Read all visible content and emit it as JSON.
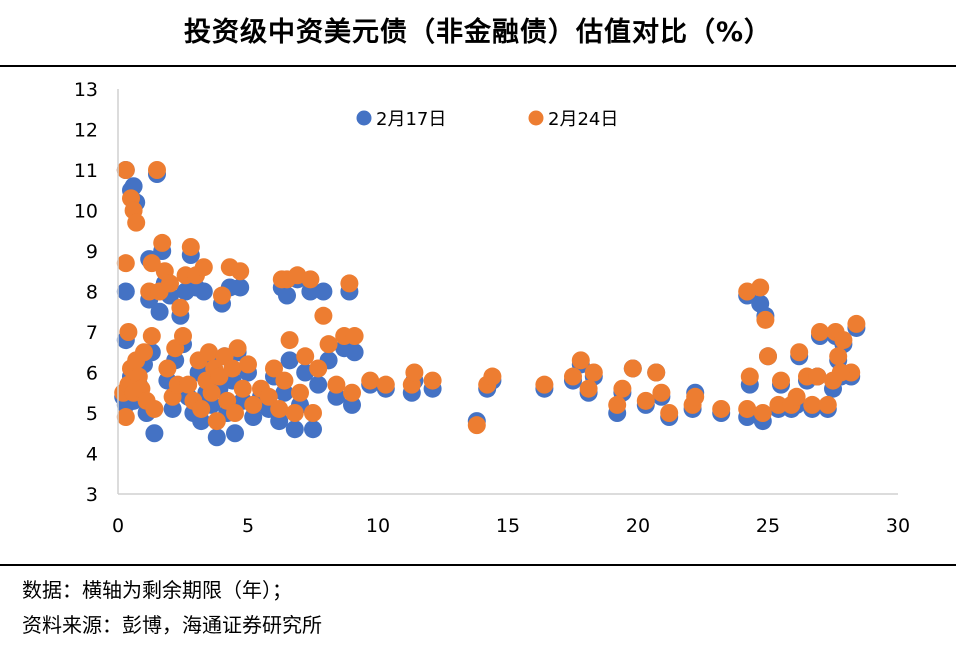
{
  "title": "投资级中资美元债（非金融债）估值对比（%）",
  "notes": {
    "line1": "数据：横轴为剩余期限（年）；",
    "line2": "资料来源：彭博，海通证券研究所"
  },
  "chart_data": {
    "type": "scatter",
    "title": "投资级中资美元债（非金融债）估值对比（%）",
    "xlabel": "",
    "ylabel": "",
    "xlim": [
      0,
      30
    ],
    "ylim": [
      3,
      13
    ],
    "xticks": [
      "0",
      "5",
      "10",
      "15",
      "20",
      "25",
      "30"
    ],
    "yticks": [
      "3",
      "4",
      "5",
      "6",
      "7",
      "8",
      "9",
      "10",
      "11",
      "12",
      "13"
    ],
    "grid": false,
    "legend_position": "top",
    "series": [
      {
        "name": "2月17日",
        "color": "#4472C4",
        "points": [
          [
            0.3,
            11.0
          ],
          [
            0.5,
            10.5
          ],
          [
            0.6,
            10.6
          ],
          [
            0.7,
            10.2
          ],
          [
            0.3,
            8.0
          ],
          [
            0.3,
            6.8
          ],
          [
            0.2,
            5.4
          ],
          [
            0.3,
            5.2
          ],
          [
            0.4,
            5.6
          ],
          [
            0.5,
            5.9
          ],
          [
            0.6,
            5.3
          ],
          [
            0.7,
            6.0
          ],
          [
            0.8,
            5.7
          ],
          [
            0.9,
            5.4
          ],
          [
            1.0,
            6.2
          ],
          [
            1.1,
            5.0
          ],
          [
            1.2,
            7.8
          ],
          [
            1.2,
            8.8
          ],
          [
            1.3,
            6.5
          ],
          [
            1.4,
            4.5
          ],
          [
            1.5,
            10.9
          ],
          [
            1.6,
            7.5
          ],
          [
            1.7,
            9.0
          ],
          [
            1.8,
            8.2
          ],
          [
            1.9,
            5.8
          ],
          [
            2.0,
            7.9
          ],
          [
            2.1,
            5.1
          ],
          [
            2.2,
            6.3
          ],
          [
            2.3,
            5.5
          ],
          [
            2.4,
            7.4
          ],
          [
            2.5,
            6.7
          ],
          [
            2.6,
            8.0
          ],
          [
            2.7,
            5.4
          ],
          [
            2.8,
            8.9
          ],
          [
            2.9,
            5.0
          ],
          [
            3.0,
            8.1
          ],
          [
            3.1,
            6.0
          ],
          [
            3.2,
            4.8
          ],
          [
            3.3,
            8.0
          ],
          [
            3.4,
            5.5
          ],
          [
            3.5,
            6.3
          ],
          [
            3.6,
            5.2
          ],
          [
            3.7,
            5.9
          ],
          [
            3.8,
            4.4
          ],
          [
            3.9,
            5.6
          ],
          [
            4.0,
            7.7
          ],
          [
            4.1,
            6.4
          ],
          [
            4.2,
            5.0
          ],
          [
            4.3,
            8.1
          ],
          [
            4.4,
            5.8
          ],
          [
            4.5,
            4.5
          ],
          [
            4.6,
            6.5
          ],
          [
            4.7,
            8.1
          ],
          [
            4.8,
            5.3
          ],
          [
            5.0,
            6.0
          ],
          [
            5.2,
            4.9
          ],
          [
            5.5,
            5.4
          ],
          [
            5.8,
            5.1
          ],
          [
            6.0,
            5.9
          ],
          [
            6.2,
            4.8
          ],
          [
            6.3,
            8.1
          ],
          [
            6.4,
            5.5
          ],
          [
            6.5,
            7.9
          ],
          [
            6.6,
            6.3
          ],
          [
            6.8,
            4.6
          ],
          [
            6.9,
            8.3
          ],
          [
            7.0,
            5.2
          ],
          [
            7.2,
            6.0
          ],
          [
            7.4,
            8.0
          ],
          [
            7.5,
            4.6
          ],
          [
            7.7,
            5.7
          ],
          [
            7.9,
            8.0
          ],
          [
            8.1,
            6.3
          ],
          [
            8.4,
            5.4
          ],
          [
            8.7,
            6.6
          ],
          [
            8.9,
            8.0
          ],
          [
            9.1,
            6.5
          ],
          [
            9.0,
            5.2
          ],
          [
            9.7,
            5.7
          ],
          [
            10.3,
            5.6
          ],
          [
            11.3,
            5.5
          ],
          [
            11.4,
            5.8
          ],
          [
            12.1,
            5.6
          ],
          [
            13.8,
            4.8
          ],
          [
            14.2,
            5.6
          ],
          [
            14.4,
            5.8
          ],
          [
            16.4,
            5.6
          ],
          [
            17.5,
            5.8
          ],
          [
            17.8,
            6.2
          ],
          [
            18.1,
            5.5
          ],
          [
            18.3,
            5.9
          ],
          [
            19.2,
            5.0
          ],
          [
            19.4,
            5.5
          ],
          [
            19.8,
            6.1
          ],
          [
            20.3,
            5.2
          ],
          [
            20.7,
            6.0
          ],
          [
            20.9,
            5.4
          ],
          [
            21.2,
            4.9
          ],
          [
            22.1,
            5.1
          ],
          [
            22.2,
            5.5
          ],
          [
            23.2,
            5.0
          ],
          [
            24.2,
            4.9
          ],
          [
            24.3,
            5.7
          ],
          [
            24.2,
            7.9
          ],
          [
            24.7,
            7.7
          ],
          [
            24.8,
            4.8
          ],
          [
            24.9,
            7.4
          ],
          [
            25.0,
            6.4
          ],
          [
            25.4,
            5.1
          ],
          [
            25.5,
            5.7
          ],
          [
            25.9,
            5.1
          ],
          [
            26.1,
            5.2
          ],
          [
            26.2,
            6.4
          ],
          [
            26.5,
            5.8
          ],
          [
            26.7,
            5.1
          ],
          [
            26.9,
            5.9
          ],
          [
            27.0,
            6.9
          ],
          [
            27.3,
            5.1
          ],
          [
            27.5,
            5.6
          ],
          [
            27.6,
            6.9
          ],
          [
            27.7,
            6.3
          ],
          [
            27.9,
            6.7
          ],
          [
            28.2,
            5.9
          ],
          [
            28.4,
            7.1
          ],
          [
            27.8,
            5.9
          ]
        ]
      },
      {
        "name": "2月24日",
        "color": "#ED7D31",
        "points": [
          [
            0.3,
            11.0
          ],
          [
            0.5,
            10.3
          ],
          [
            0.6,
            10.0
          ],
          [
            0.7,
            9.7
          ],
          [
            0.3,
            8.7
          ],
          [
            0.4,
            7.0
          ],
          [
            0.2,
            5.5
          ],
          [
            0.3,
            4.9
          ],
          [
            0.4,
            5.7
          ],
          [
            0.5,
            6.1
          ],
          [
            0.6,
            5.5
          ],
          [
            0.7,
            6.3
          ],
          [
            0.8,
            5.9
          ],
          [
            0.9,
            5.6
          ],
          [
            1.0,
            6.5
          ],
          [
            1.1,
            5.3
          ],
          [
            1.2,
            8.0
          ],
          [
            1.3,
            8.7
          ],
          [
            1.3,
            6.9
          ],
          [
            1.4,
            5.1
          ],
          [
            1.5,
            11.0
          ],
          [
            1.6,
            8.0
          ],
          [
            1.7,
            9.2
          ],
          [
            1.8,
            8.5
          ],
          [
            1.9,
            6.1
          ],
          [
            2.0,
            8.2
          ],
          [
            2.1,
            5.4
          ],
          [
            2.2,
            6.6
          ],
          [
            2.3,
            5.7
          ],
          [
            2.4,
            7.6
          ],
          [
            2.5,
            6.9
          ],
          [
            2.6,
            8.4
          ],
          [
            2.7,
            5.7
          ],
          [
            2.8,
            9.1
          ],
          [
            2.9,
            5.3
          ],
          [
            3.0,
            8.4
          ],
          [
            3.1,
            6.3
          ],
          [
            3.2,
            5.1
          ],
          [
            3.3,
            8.6
          ],
          [
            3.4,
            5.8
          ],
          [
            3.5,
            6.5
          ],
          [
            3.6,
            5.5
          ],
          [
            3.7,
            6.1
          ],
          [
            3.8,
            4.8
          ],
          [
            3.9,
            5.9
          ],
          [
            4.0,
            7.9
          ],
          [
            4.1,
            6.4
          ],
          [
            4.2,
            5.3
          ],
          [
            4.3,
            8.6
          ],
          [
            4.4,
            6.1
          ],
          [
            4.5,
            5.0
          ],
          [
            4.6,
            6.6
          ],
          [
            4.7,
            8.5
          ],
          [
            4.8,
            5.6
          ],
          [
            5.0,
            6.2
          ],
          [
            5.2,
            5.2
          ],
          [
            5.5,
            5.6
          ],
          [
            5.8,
            5.4
          ],
          [
            6.0,
            6.1
          ],
          [
            6.2,
            5.1
          ],
          [
            6.3,
            8.3
          ],
          [
            6.4,
            5.8
          ],
          [
            6.5,
            8.3
          ],
          [
            6.6,
            6.8
          ],
          [
            6.8,
            5.0
          ],
          [
            6.9,
            8.4
          ],
          [
            7.0,
            5.5
          ],
          [
            7.2,
            6.4
          ],
          [
            7.4,
            8.3
          ],
          [
            7.5,
            5.0
          ],
          [
            7.7,
            6.1
          ],
          [
            7.9,
            7.4
          ],
          [
            8.1,
            6.7
          ],
          [
            8.4,
            5.7
          ],
          [
            8.7,
            6.9
          ],
          [
            8.9,
            8.2
          ],
          [
            9.1,
            6.9
          ],
          [
            9.0,
            5.5
          ],
          [
            9.7,
            5.8
          ],
          [
            10.3,
            5.7
          ],
          [
            11.3,
            5.7
          ],
          [
            11.4,
            6.0
          ],
          [
            12.1,
            5.8
          ],
          [
            13.8,
            4.7
          ],
          [
            14.2,
            5.7
          ],
          [
            14.4,
            5.9
          ],
          [
            16.4,
            5.7
          ],
          [
            17.5,
            5.9
          ],
          [
            17.8,
            6.3
          ],
          [
            18.1,
            5.6
          ],
          [
            18.3,
            6.0
          ],
          [
            19.2,
            5.2
          ],
          [
            19.4,
            5.6
          ],
          [
            19.8,
            6.1
          ],
          [
            20.3,
            5.3
          ],
          [
            20.7,
            6.0
          ],
          [
            20.9,
            5.5
          ],
          [
            21.2,
            5.0
          ],
          [
            22.1,
            5.2
          ],
          [
            22.2,
            5.4
          ],
          [
            23.2,
            5.1
          ],
          [
            24.2,
            5.1
          ],
          [
            24.3,
            5.9
          ],
          [
            24.2,
            8.0
          ],
          [
            24.7,
            8.1
          ],
          [
            24.8,
            5.0
          ],
          [
            24.9,
            7.3
          ],
          [
            25.0,
            6.4
          ],
          [
            25.4,
            5.2
          ],
          [
            25.5,
            5.8
          ],
          [
            25.9,
            5.2
          ],
          [
            26.1,
            5.4
          ],
          [
            26.2,
            6.5
          ],
          [
            26.5,
            5.9
          ],
          [
            26.7,
            5.2
          ],
          [
            26.9,
            5.9
          ],
          [
            27.0,
            7.0
          ],
          [
            27.3,
            5.2
          ],
          [
            27.5,
            5.8
          ],
          [
            27.6,
            7.0
          ],
          [
            27.7,
            6.4
          ],
          [
            27.9,
            6.8
          ],
          [
            28.2,
            6.0
          ],
          [
            28.4,
            7.2
          ],
          [
            27.8,
            6.0
          ]
        ]
      }
    ]
  }
}
